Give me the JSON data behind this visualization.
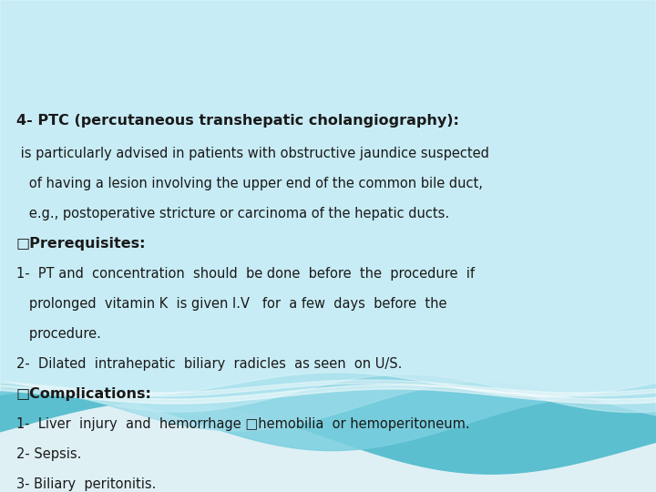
{
  "bg_color": "#dff0f5",
  "text_color": "#1a1a1a",
  "title_line": "4- PTC (percutaneous transhepatic cholangiography):",
  "lines": [
    {
      "text": " is particularly advised in patients with obstructive jaundice suspected",
      "bold": false
    },
    {
      "text": "   of having a lesion involving the upper end of the common bile duct,",
      "bold": false
    },
    {
      "text": "   e.g., postoperative stricture or carcinoma of the hepatic ducts.",
      "bold": false
    },
    {
      "text": "□Prerequisites:",
      "bold": true
    },
    {
      "text": "1-  PT and  concentration  should  be done  before  the  procedure  if",
      "bold": false
    },
    {
      "text": "   prolonged  vitamin K  is given I.V   for  a few  days  before  the",
      "bold": false
    },
    {
      "text": "   procedure.",
      "bold": false
    },
    {
      "text": "2-  Dilated  intrahepatic  biliary  radicles  as seen  on U/S.",
      "bold": false
    },
    {
      "text": "□Complications:",
      "bold": true
    },
    {
      "text": "1-  Liver  injury  and  hemorrhage □hemobilia  or hemoperitoneum.",
      "bold": false
    },
    {
      "text": "2- Sepsis.",
      "bold": false
    },
    {
      "text": "3- Biliary  peritonitis.",
      "bold": false
    }
  ],
  "font_size_title": 11.5,
  "font_size_body": 10.5,
  "wave_colors": [
    "#5bc8d8",
    "#7dd4e0",
    "#a8e0ec",
    "#c8edf5",
    "#e0f5fa"
  ],
  "white_color": "#ffffff"
}
